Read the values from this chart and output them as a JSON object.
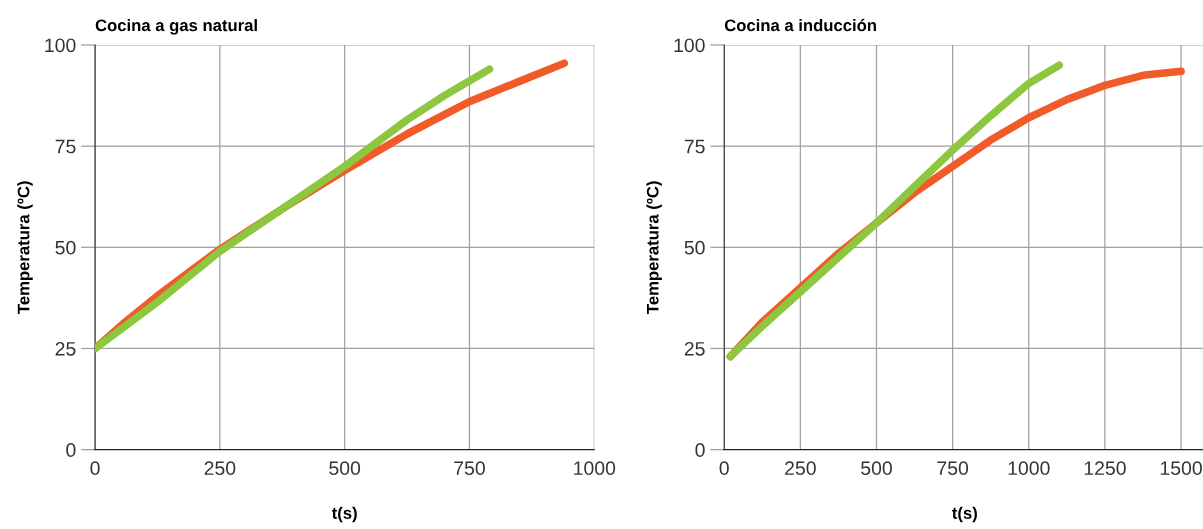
{
  "chart_data": [
    {
      "type": "line",
      "title": "Cocina a gas natural",
      "xlabel": "t(s)",
      "ylabel": "Temperatura (ºC)",
      "xlim": [
        0,
        1000
      ],
      "xticks": [
        0,
        250,
        500,
        750,
        1000
      ],
      "ylim": [
        0,
        100
      ],
      "yticks": [
        0,
        25,
        50,
        75,
        100
      ],
      "grid": true,
      "line_style": "solid",
      "marker": "none",
      "series": [
        {
          "color": "#f15a29",
          "x": [
            0,
            60,
            125,
            190,
            250,
            375,
            500,
            625,
            750,
            850,
            940
          ],
          "values": [
            25,
            31.5,
            38,
            44,
            49.5,
            59.5,
            69,
            78,
            86,
            91,
            95.5
          ]
        },
        {
          "color": "#8dc63f",
          "x": [
            0,
            60,
            125,
            190,
            250,
            375,
            500,
            625,
            700,
            790
          ],
          "values": [
            25,
            30.5,
            36.5,
            43,
            49,
            59.5,
            70,
            81.5,
            87.5,
            94
          ]
        }
      ]
    },
    {
      "type": "line",
      "title": "Cocina a inducción",
      "xlabel": "t(s)",
      "ylabel": "Temperatura (ºC)",
      "xlim": [
        0,
        1580
      ],
      "xticks": [
        0,
        250,
        500,
        750,
        1000,
        1250,
        1500
      ],
      "ylim": [
        0,
        100
      ],
      "yticks": [
        0,
        25,
        50,
        75,
        100
      ],
      "grid": true,
      "line_style": "solid",
      "marker": "none",
      "series": [
        {
          "color": "#f15a29",
          "x": [
            20,
            125,
            250,
            375,
            500,
            625,
            750,
            875,
            1000,
            1125,
            1250,
            1375,
            1500
          ],
          "values": [
            23,
            31.5,
            40,
            48.5,
            56,
            63.5,
            70,
            76.5,
            82,
            86.5,
            90,
            92.5,
            93.5
          ]
        },
        {
          "color": "#8dc63f",
          "x": [
            20,
            125,
            250,
            375,
            500,
            625,
            750,
            875,
            1000,
            1100
          ],
          "values": [
            23,
            30.5,
            39,
            47.5,
            56,
            65,
            74,
            82.5,
            90.5,
            95
          ]
        }
      ]
    }
  ]
}
